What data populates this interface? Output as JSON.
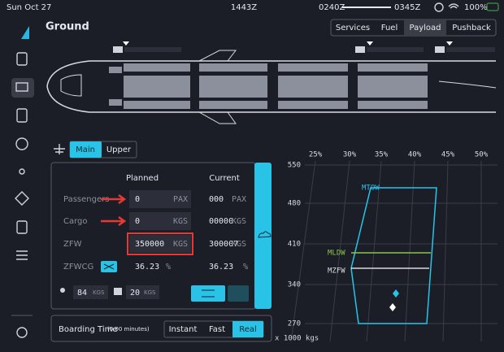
{
  "status_bar": {
    "date": "Sun Oct 27",
    "utc": "1443Z",
    "departure": "0240Z",
    "arrival": "0345Z",
    "battery": "100%"
  },
  "header": {
    "title": "Ground"
  },
  "tabs": [
    "Services",
    "Fuel",
    "Payload",
    "Pushback"
  ],
  "deck_tabs": [
    "Main",
    "Upper"
  ],
  "payload_table": {
    "columns": [
      "Planned",
      "Current"
    ],
    "rows": [
      {
        "label": "Passengers",
        "planned": "0",
        "planned_unit": "PAX",
        "current": "000",
        "current_unit": "PAX"
      },
      {
        "label": "Cargo",
        "planned": "0",
        "planned_unit": "KGS",
        "current": "00000",
        "current_unit": "KGS"
      },
      {
        "label": "ZFW",
        "planned": "350000",
        "planned_unit": "KGS",
        "current": "300007",
        "current_unit": "KGS"
      },
      {
        "label": "ZFWCG",
        "planned": "36.23",
        "planned_unit": "%",
        "current": "36.23",
        "current_unit": "%"
      }
    ]
  },
  "weights": {
    "pax_weight": "84",
    "pax_weight_unit": "KGS",
    "bag_weight": "20",
    "bag_weight_unit": "KGS"
  },
  "boarding": {
    "label": "Boarding Time",
    "duration": "(0.00 minutes)",
    "options": [
      "Instant",
      "Fast",
      "Real"
    ]
  },
  "envelope": {
    "x_labels": [
      "25%",
      "30%",
      "35%",
      "40%",
      "45%",
      "50%"
    ],
    "y_labels": [
      "550",
      "480",
      "410",
      "340",
      "270"
    ],
    "lines": [
      "MTOW",
      "MLDW",
      "MZFW"
    ],
    "unit": "x 1000 kgs"
  }
}
